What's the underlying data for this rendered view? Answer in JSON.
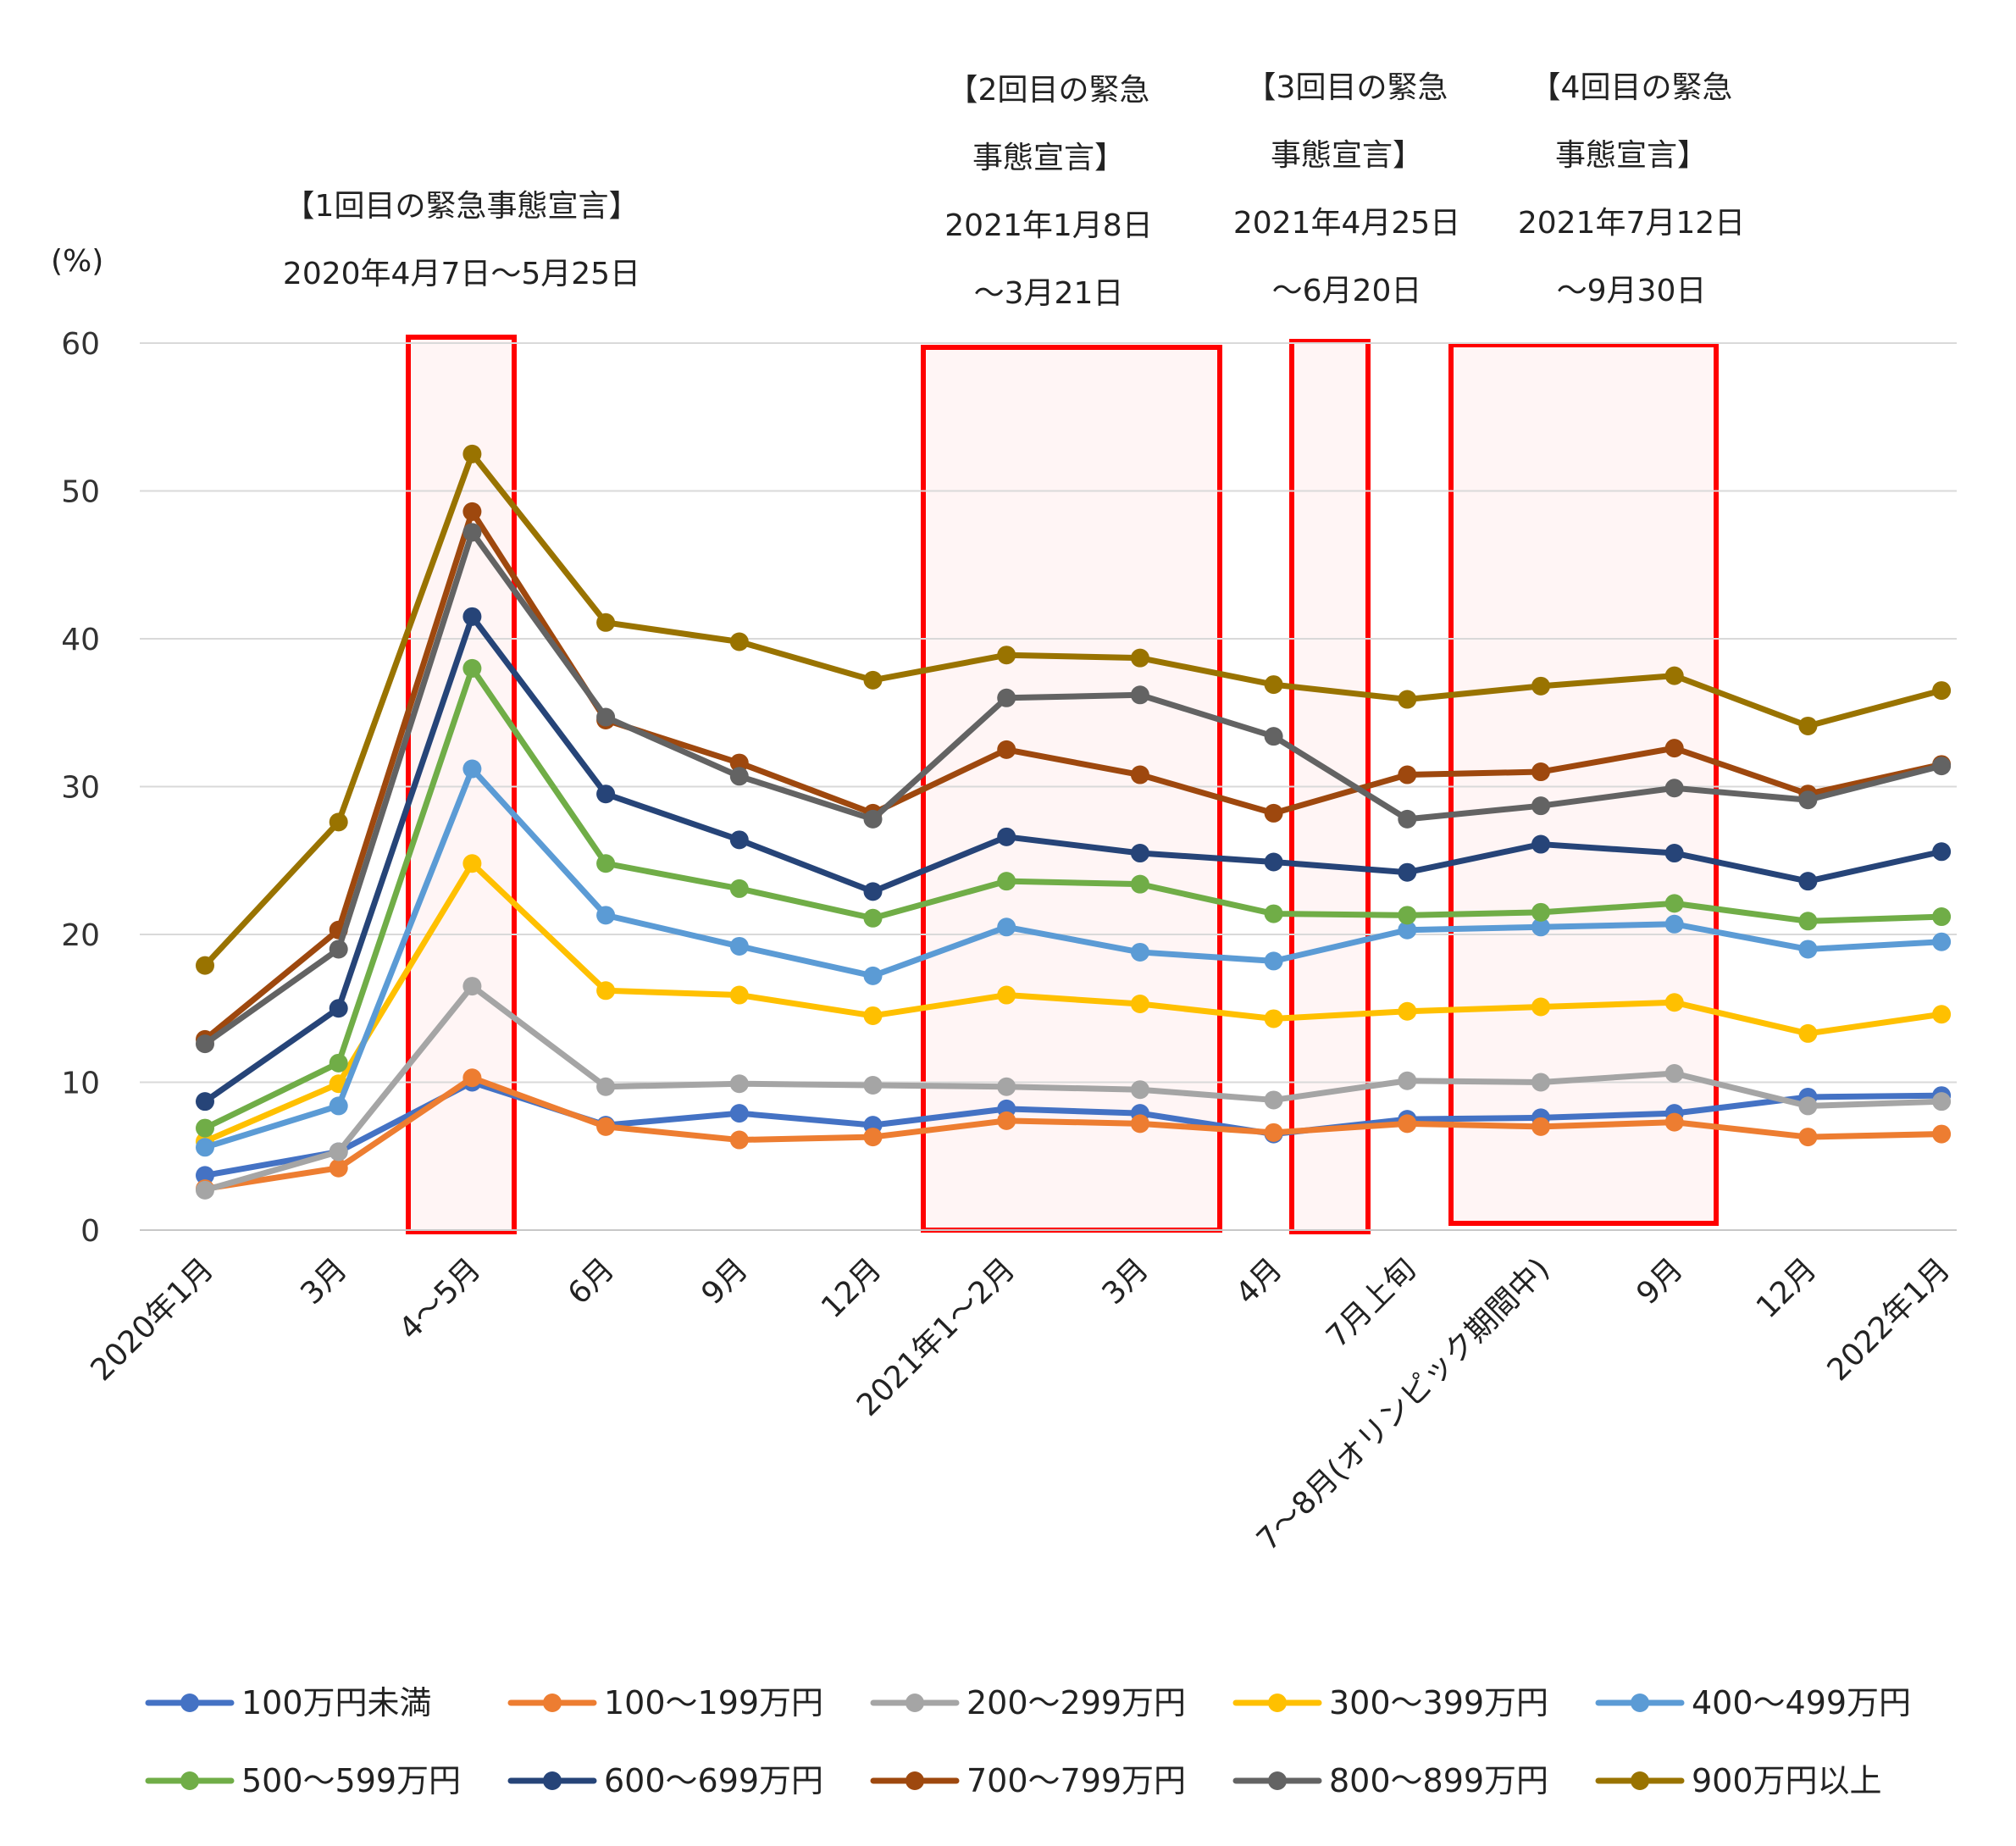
{
  "chart_data": {
    "type": "line",
    "title": "",
    "ylabel": "(%)",
    "xlabel": "",
    "ylim": [
      0,
      60
    ],
    "yticks": [
      0,
      10,
      20,
      30,
      40,
      50,
      60
    ],
    "grid": true,
    "legend_position": "bottom",
    "categories": [
      "2020年1月",
      "3月",
      "4～5月",
      "6月",
      "9月",
      "12月",
      "2021年1～2月",
      "3月",
      "4月",
      "7月上旬",
      "7～8月(オリンピック期間中)",
      "9月",
      "12月",
      "2022年1月"
    ],
    "series": [
      {
        "name": "100万円未満",
        "color": "#4472c4",
        "values": [
          3.7,
          5.3,
          10.0,
          7.1,
          7.9,
          7.1,
          8.2,
          7.9,
          6.5,
          7.5,
          7.6,
          7.9,
          9.0,
          9.1
        ]
      },
      {
        "name": "100～199万円",
        "color": "#ed7d31",
        "values": [
          2.8,
          4.2,
          10.3,
          7.0,
          6.1,
          6.3,
          7.4,
          7.2,
          6.6,
          7.2,
          7.0,
          7.3,
          6.3,
          6.5
        ]
      },
      {
        "name": "200～299万円",
        "color": "#a5a5a5",
        "values": [
          2.7,
          5.3,
          16.5,
          9.7,
          9.9,
          9.8,
          9.7,
          9.5,
          8.8,
          10.1,
          10.0,
          10.6,
          8.4,
          8.7
        ]
      },
      {
        "name": "300～399万円",
        "color": "#ffc000",
        "values": [
          6.0,
          9.9,
          24.8,
          16.2,
          15.9,
          14.5,
          15.9,
          15.3,
          14.3,
          14.8,
          15.1,
          15.4,
          13.3,
          14.6
        ]
      },
      {
        "name": "400～499万円",
        "color": "#5b9bd5",
        "values": [
          5.6,
          8.4,
          31.2,
          21.3,
          19.2,
          17.2,
          20.5,
          18.8,
          18.2,
          20.3,
          20.5,
          20.7,
          19.0,
          19.5
        ]
      },
      {
        "name": "500～599万円",
        "color": "#70ad47",
        "values": [
          6.9,
          11.3,
          38.0,
          24.8,
          23.1,
          21.1,
          23.6,
          23.4,
          21.4,
          21.3,
          21.5,
          22.1,
          20.9,
          21.2
        ]
      },
      {
        "name": "600～699万円",
        "color": "#264478",
        "values": [
          8.7,
          15.0,
          41.5,
          29.5,
          26.4,
          22.9,
          26.6,
          25.5,
          24.9,
          24.2,
          26.1,
          25.5,
          23.6,
          25.6
        ]
      },
      {
        "name": "700～799万円",
        "color": "#9e480e",
        "values": [
          12.9,
          20.3,
          48.6,
          34.5,
          31.6,
          28.2,
          32.5,
          30.8,
          28.2,
          30.8,
          31.0,
          32.6,
          29.5,
          31.5
        ]
      },
      {
        "name": "800～899万円",
        "color": "#636363",
        "values": [
          12.6,
          19.0,
          47.2,
          34.7,
          30.7,
          27.8,
          36.0,
          36.2,
          33.4,
          27.8,
          28.7,
          29.9,
          29.1,
          31.4
        ]
      },
      {
        "name": "900万円以上",
        "color": "#997300",
        "values": [
          17.9,
          27.6,
          52.5,
          41.1,
          39.8,
          37.2,
          38.9,
          38.7,
          36.9,
          35.9,
          36.8,
          37.5,
          34.1,
          36.5
        ]
      }
    ],
    "annotations": [
      {
        "lines": [
          "【1回目の緊急事態宣言】",
          "2020年4月7日～5月25日"
        ]
      },
      {
        "lines": [
          "【2回目の緊急",
          "事態宣言】",
          "2021年1月8日",
          "～3月21日"
        ]
      },
      {
        "lines": [
          "【3回目の緊急",
          "事態宣言】",
          "2021年4月25日",
          "～6月20日"
        ]
      },
      {
        "lines": [
          "【4回目の緊急",
          "事態宣言】",
          "2021年7月12日",
          "～9月30日"
        ]
      }
    ],
    "highlight_color": "#ff0000"
  }
}
